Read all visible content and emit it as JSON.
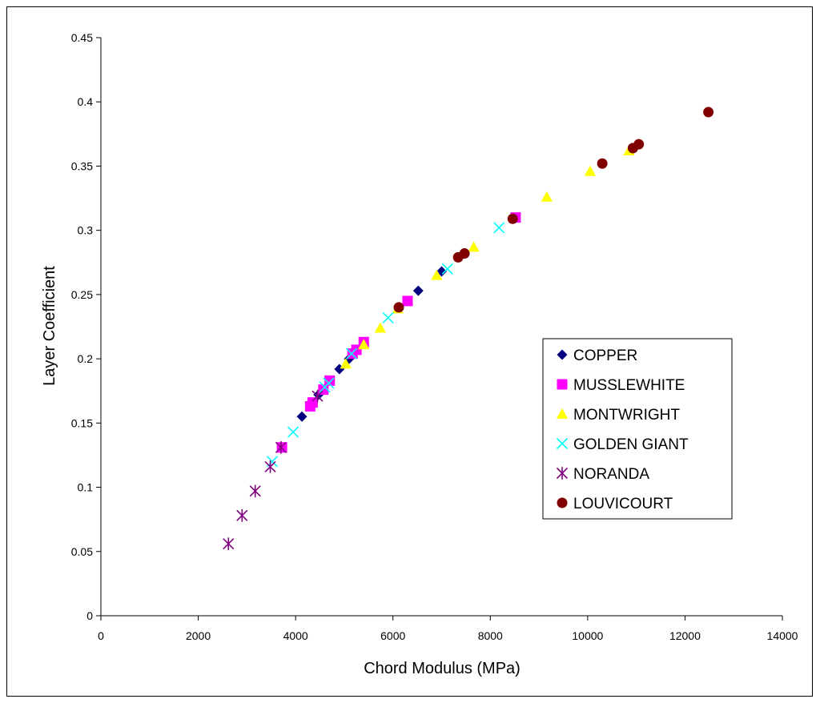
{
  "chart_data": {
    "type": "scatter",
    "xlabel": "Chord Modulus (MPa)",
    "ylabel": "Layer Coefficient",
    "xlim": [
      0,
      14000
    ],
    "ylim": [
      0,
      0.45
    ],
    "xticks": [
      "0",
      "2000",
      "4000",
      "6000",
      "8000",
      "10000",
      "12000",
      "14000"
    ],
    "yticks": [
      "0",
      "0.05",
      "0.1",
      "0.15",
      "0.2",
      "0.25",
      "0.3",
      "0.35",
      "0.4",
      "0.45"
    ],
    "grid": false,
    "legend_position": "right",
    "series": [
      {
        "name": "COPPER",
        "marker": "diamond",
        "color": "#000080",
        "points": [
          [
            4130,
            0.155
          ],
          [
            4470,
            0.172
          ],
          [
            4900,
            0.192
          ],
          [
            5100,
            0.2
          ],
          [
            6520,
            0.253
          ],
          [
            7000,
            0.268
          ]
        ]
      },
      {
        "name": "MUSSLEWHITE",
        "marker": "square",
        "color": "#ff00ff",
        "points": [
          [
            3720,
            0.131
          ],
          [
            4300,
            0.163
          ],
          [
            4350,
            0.166
          ],
          [
            4570,
            0.176
          ],
          [
            4700,
            0.183
          ],
          [
            5170,
            0.204
          ],
          [
            5250,
            0.207
          ],
          [
            5400,
            0.213
          ],
          [
            6300,
            0.245
          ],
          [
            8520,
            0.31
          ]
        ]
      },
      {
        "name": "MONTWRIGHT",
        "marker": "triangle",
        "color": "#ffff00",
        "points": [
          [
            5030,
            0.196
          ],
          [
            5400,
            0.211
          ],
          [
            5740,
            0.224
          ],
          [
            6100,
            0.239
          ],
          [
            6900,
            0.265
          ],
          [
            7660,
            0.287
          ],
          [
            9160,
            0.326
          ],
          [
            10050,
            0.346
          ],
          [
            10850,
            0.362
          ]
        ]
      },
      {
        "name": "GOLDEN GIANT",
        "marker": "x",
        "color": "#00ffff",
        "points": [
          [
            3520,
            0.12
          ],
          [
            3950,
            0.143
          ],
          [
            4600,
            0.178
          ],
          [
            4680,
            0.181
          ],
          [
            5150,
            0.204
          ],
          [
            5900,
            0.232
          ],
          [
            7120,
            0.27
          ],
          [
            8180,
            0.302
          ]
        ]
      },
      {
        "name": "NORANDA",
        "marker": "star",
        "color": "#800080",
        "points": [
          [
            2620,
            0.056
          ],
          [
            2900,
            0.078
          ],
          [
            3170,
            0.097
          ],
          [
            3480,
            0.116
          ],
          [
            3700,
            0.131
          ],
          [
            4450,
            0.171
          ]
        ]
      },
      {
        "name": "LOUVICOURT",
        "marker": "circle",
        "color": "#800000",
        "points": [
          [
            6120,
            0.24
          ],
          [
            7340,
            0.279
          ],
          [
            7470,
            0.282
          ],
          [
            8460,
            0.309
          ],
          [
            10300,
            0.352
          ],
          [
            10930,
            0.364
          ],
          [
            11050,
            0.367
          ],
          [
            12480,
            0.392
          ]
        ]
      }
    ]
  }
}
